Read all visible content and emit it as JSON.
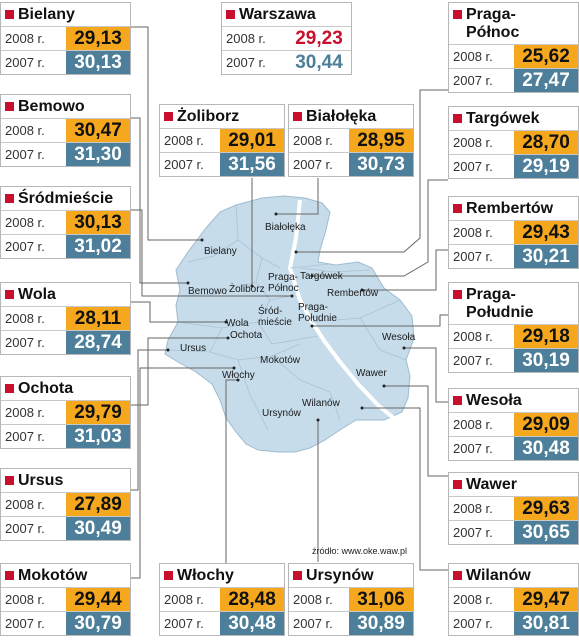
{
  "year_2008": "2008 r.",
  "year_2007": "2007 r.",
  "source": "źródło: www.oke.waw.pl",
  "colors": {
    "accent_red": "#c8102e",
    "value_2008_bg": "#f5a81e",
    "value_2007_bg": "#4d7f9a",
    "map_fill": "#c6dceb"
  },
  "districts": [
    {
      "id": "bielany",
      "name": "Bielany",
      "v2008": "29,13",
      "v2007": "30,13"
    },
    {
      "id": "warszawa",
      "name": "Warszawa",
      "v2008": "29,23",
      "v2007": "30,44"
    },
    {
      "id": "praga-polnoc",
      "name": "Praga- Północ",
      "v2008": "25,62",
      "v2007": "27,47"
    },
    {
      "id": "bemowo",
      "name": "Bemowo",
      "v2008": "30,47",
      "v2007": "31,30"
    },
    {
      "id": "zoliborz",
      "name": "Żoliborz",
      "v2008": "29,01",
      "v2007": "31,56"
    },
    {
      "id": "bialoleka",
      "name": "Białołęka",
      "v2008": "28,95",
      "v2007": "30,73"
    },
    {
      "id": "targowek",
      "name": "Targówek",
      "v2008": "28,70",
      "v2007": "29,19"
    },
    {
      "id": "srodmiescie",
      "name": "Śródmieście",
      "v2008": "30,13",
      "v2007": "31,02"
    },
    {
      "id": "rembertow",
      "name": "Rembertów",
      "v2008": "29,43",
      "v2007": "30,21"
    },
    {
      "id": "wola",
      "name": "Wola",
      "v2008": "28,11",
      "v2007": "28,74"
    },
    {
      "id": "praga-poludnie",
      "name": "Praga- Południe",
      "v2008": "29,18",
      "v2007": "30,19"
    },
    {
      "id": "ochota",
      "name": "Ochota",
      "v2008": "29,79",
      "v2007": "31,03"
    },
    {
      "id": "wesola",
      "name": "Wesoła",
      "v2008": "29,09",
      "v2007": "30,48"
    },
    {
      "id": "ursus",
      "name": "Ursus",
      "v2008": "27,89",
      "v2007": "30,49"
    },
    {
      "id": "wawer",
      "name": "Wawer",
      "v2008": "29,63",
      "v2007": "30,65"
    },
    {
      "id": "mokotow",
      "name": "Mokotów",
      "v2008": "29,44",
      "v2007": "30,79"
    },
    {
      "id": "wlochy",
      "name": "Włochy",
      "v2008": "28,48",
      "v2007": "30,48"
    },
    {
      "id": "ursynow",
      "name": "Ursynów",
      "v2008": "31,06",
      "v2007": "30,89"
    },
    {
      "id": "wilanow",
      "name": "Wilanów",
      "v2008": "29,47",
      "v2007": "30,81"
    }
  ],
  "map_labels": {
    "bialoleka": "Białołęka",
    "bielany": "Bielany",
    "praga_polnoc": "Praga- Północ",
    "targowek": "Targówek",
    "bemowo": "Bemowo",
    "zoliborz": "Żoliborz",
    "rembertow": "Rembertów",
    "srodmiescie": "Śród- mieście",
    "praga_poludnie": "Praga- Południe",
    "wola": "Wola",
    "ochota": "Ochota",
    "wesola": "Wesoła",
    "ursus": "Ursus",
    "mokotow": "Mokotów",
    "wawer": "Wawer",
    "wlochy": "Włochy",
    "wilanow": "Wilanów",
    "ursynow": "Ursynów"
  }
}
